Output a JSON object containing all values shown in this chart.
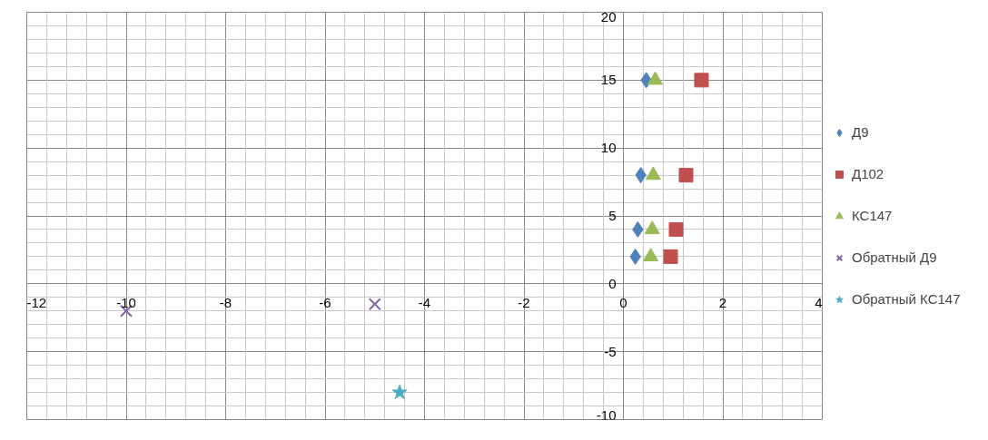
{
  "chart_data": {
    "type": "scatter",
    "series": [
      {
        "name": "Д9",
        "color": "#4f81bd",
        "marker": "diamond",
        "x": [
          0.46,
          0.35,
          0.29,
          0.24
        ],
        "values": [
          15,
          8,
          4,
          2
        ]
      },
      {
        "name": "Д102",
        "color": "#c0504d",
        "marker": "square",
        "x": [
          1.57,
          1.26,
          1.06,
          0.95
        ],
        "values": [
          15,
          8,
          4,
          2
        ]
      },
      {
        "name": "КС147",
        "color": "#9bbb59",
        "marker": "triangle",
        "x": [
          0.64,
          0.6,
          0.58,
          0.55
        ],
        "values": [
          15,
          8,
          4,
          2
        ]
      },
      {
        "name": "Обратный Д9",
        "color": "#8064a2",
        "marker": "cross",
        "x": [
          -10,
          -5
        ],
        "values": [
          -2,
          -1.5
        ]
      },
      {
        "name": "Обратный КС147",
        "color": "#4bacc6",
        "marker": "star",
        "x": [
          -4.5
        ],
        "values": [
          -8
        ]
      }
    ],
    "xlim": [
      -12,
      4
    ],
    "ylim": [
      -10,
      20
    ],
    "xticks": [
      -12,
      {
        "value": -11.6,
        "label": null
      },
      {
        "value": -11.2,
        "label": null
      },
      {
        "value": -10.8,
        "label": null
      },
      {
        "value": -10.4,
        "label": null
      },
      -10,
      {
        "value": -9.6,
        "label": null
      },
      {
        "value": -9.2,
        "label": null
      },
      {
        "value": -8.8,
        "label": null
      },
      {
        "value": -8.4,
        "label": null
      },
      -8,
      {
        "value": -7.6,
        "label": null
      },
      {
        "value": -7.2,
        "label": null
      },
      {
        "value": -6.8,
        "label": null
      },
      {
        "value": -6.4,
        "label": null
      },
      -6,
      {
        "value": -5.6,
        "label": null
      },
      {
        "value": -5.2,
        "label": null
      },
      {
        "value": -4.8,
        "label": null
      },
      {
        "value": -4.4,
        "label": null
      },
      -4,
      {
        "value": -3.6,
        "label": null
      },
      {
        "value": -3.2,
        "label": null
      },
      {
        "value": -2.8,
        "label": null
      },
      {
        "value": -2.4,
        "label": null
      },
      -2,
      {
        "value": -1.6,
        "label": null
      },
      {
        "value": -1.2,
        "label": null
      },
      {
        "value": -0.8,
        "label": null
      },
      {
        "value": -0.4,
        "label": null
      },
      0,
      {
        "value": 0.4,
        "label": null
      },
      {
        "value": 0.8,
        "label": null
      },
      {
        "value": 1.2,
        "label": null
      },
      {
        "value": 1.6,
        "label": null
      },
      2,
      {
        "value": 2.4,
        "label": null
      },
      {
        "value": 2.8,
        "label": null
      },
      {
        "value": 3.2,
        "label": null
      },
      {
        "value": 3.6,
        "label": null
      },
      4
    ],
    "yticks": [
      -10,
      {
        "value": -9,
        "label": null
      },
      {
        "value": -8,
        "label": null
      },
      {
        "value": -7,
        "label": null
      },
      {
        "value": -6,
        "label": null
      },
      -5,
      {
        "value": -4,
        "label": null
      },
      {
        "value": -3,
        "label": null
      },
      {
        "value": -2,
        "label": null
      },
      {
        "value": -1,
        "label": null
      },
      0,
      {
        "value": 1,
        "label": null
      },
      {
        "value": 2,
        "label": null
      },
      {
        "value": 3,
        "label": null
      },
      {
        "value": 4,
        "label": null
      },
      5,
      {
        "value": 6,
        "label": null
      },
      {
        "value": 7,
        "label": null
      },
      {
        "value": 8,
        "label": null
      },
      {
        "value": 9,
        "label": null
      },
      10,
      {
        "value": 11,
        "label": null
      },
      {
        "value": 12,
        "label": null
      },
      {
        "value": 13,
        "label": null
      },
      {
        "value": 14,
        "label": null
      },
      15,
      {
        "value": 16,
        "label": null
      },
      {
        "value": 17,
        "label": null
      },
      {
        "value": 18,
        "label": null
      },
      {
        "value": 19,
        "label": null
      },
      20
    ],
    "grid": true,
    "legend": "right"
  }
}
